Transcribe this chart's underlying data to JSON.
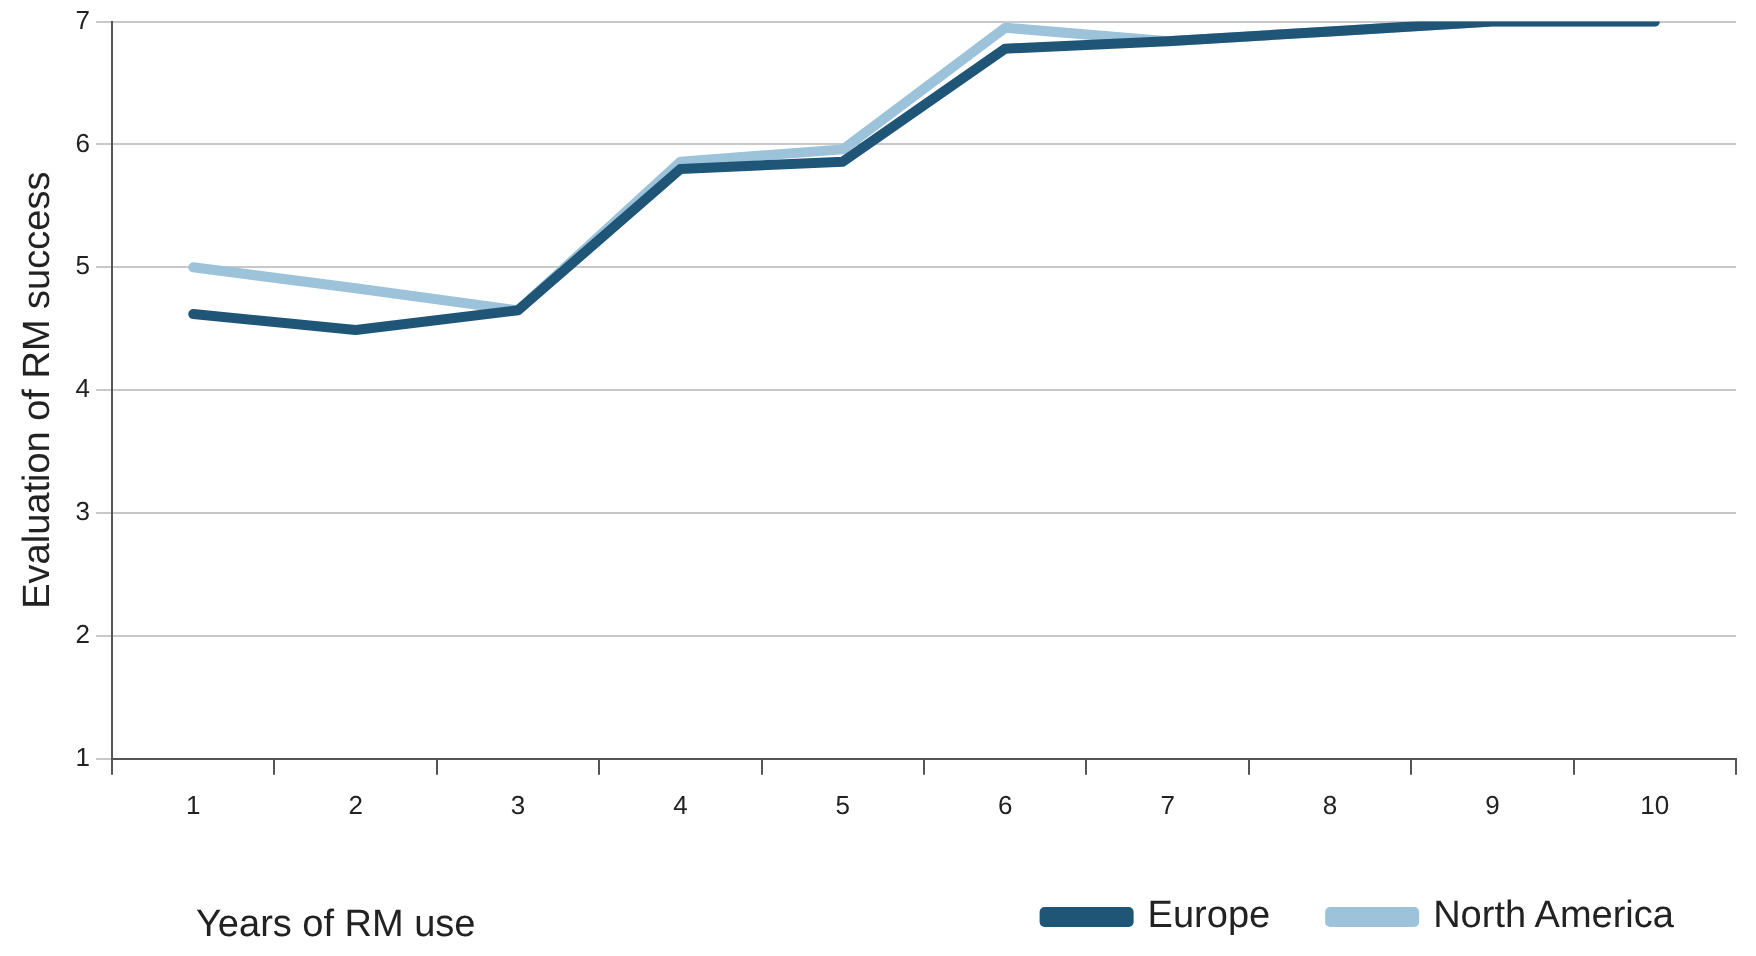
{
  "chart_data": {
    "type": "line",
    "xlabel": "Years of RM use",
    "ylabel": "Evaluation of RM success",
    "categories": [
      "1",
      "2",
      "3",
      "4",
      "5",
      "6",
      "7",
      "8",
      "9",
      "10"
    ],
    "series": [
      {
        "name": "Europe",
        "color": "#1f5577",
        "values": [
          4.62,
          4.49,
          4.65,
          5.8,
          5.86,
          6.78,
          6.84,
          6.92,
          7.0,
          7.0
        ]
      },
      {
        "name": "North America",
        "color": "#9cc3d9",
        "values": [
          5.0,
          4.83,
          4.65,
          5.86,
          5.96,
          6.95,
          6.84,
          6.92,
          7.0,
          7.0
        ]
      }
    ],
    "ylim": [
      1,
      7
    ],
    "yticks": [
      1,
      2,
      3,
      4,
      5,
      6,
      7
    ],
    "grid": "y",
    "legend": "bottom right",
    "marker": "none",
    "line_style": "solid"
  }
}
